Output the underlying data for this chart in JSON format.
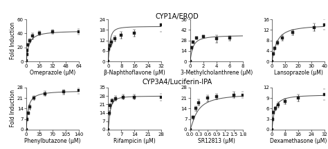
{
  "title_top": "CYP1A/EROD",
  "title_bottom": "CYP3A4/Luciferin-IPA",
  "panels": [
    {
      "xlabel": "Omeprazole (μM)",
      "ylabel": "Fold Induction",
      "xmax": 64,
      "xticks": [
        0,
        16,
        32,
        48,
        64
      ],
      "ymin": 0,
      "ymax": 60,
      "yticks": [
        0,
        20,
        40,
        60
      ],
      "Emax": 44,
      "EC50": 3.0,
      "n": 1.1,
      "E0": 0,
      "x_data": [
        0,
        0.5,
        1,
        2,
        4,
        8,
        16,
        32,
        64
      ],
      "y_data": [
        1,
        10,
        16,
        24,
        30,
        36,
        40,
        42,
        42
      ],
      "y_err": [
        0.5,
        1.5,
        2,
        2,
        3,
        4,
        3,
        3,
        4
      ]
    },
    {
      "xlabel": "β-Naphthoflavone (μM)",
      "ylabel": "",
      "xmax": 32,
      "xticks": [
        0,
        8,
        16,
        24,
        32
      ],
      "ymin": 0,
      "ymax": 24,
      "yticks": [
        0,
        6,
        12,
        18,
        24
      ],
      "Emax": 20,
      "EC50": 1.0,
      "n": 1.5,
      "E0": 0,
      "x_data": [
        0,
        0.5,
        1,
        2,
        4,
        8,
        16,
        32
      ],
      "y_data": [
        0,
        7,
        9,
        11,
        13,
        15,
        16,
        21
      ],
      "y_err": [
        0.3,
        1,
        1,
        1.5,
        1.5,
        2,
        2,
        4
      ]
    },
    {
      "xlabel": "3-Methylcholanthrene (μM)",
      "ylabel": "",
      "xmax": 8,
      "xticks": [
        0,
        2,
        4,
        6,
        8
      ],
      "ymin": 0,
      "ymax": 56,
      "yticks": [
        0,
        14,
        28,
        42,
        56
      ],
      "Emax": 35,
      "EC50": 0.4,
      "n": 1.2,
      "E0": 0,
      "x_data": [
        0,
        0.25,
        0.5,
        1,
        2,
        4,
        6
      ],
      "y_data": [
        0,
        18,
        26,
        31,
        33,
        30,
        31
      ],
      "y_err": [
        0.3,
        2,
        2,
        2,
        2,
        5,
        3
      ]
    },
    {
      "xlabel": "Lansoprazole (μM)",
      "ylabel": "",
      "xmax": 40,
      "xticks": [
        0,
        10,
        20,
        30,
        40
      ],
      "ymin": 0,
      "ymax": 16,
      "yticks": [
        0,
        4,
        8,
        12,
        16
      ],
      "Emax": 14,
      "EC50": 3.5,
      "n": 1.2,
      "E0": 0,
      "x_data": [
        0,
        1,
        2,
        4,
        8,
        16,
        32,
        40
      ],
      "y_data": [
        0,
        3,
        5,
        7,
        9,
        11,
        13,
        14
      ],
      "y_err": [
        0.2,
        0.5,
        0.5,
        0.8,
        1,
        1,
        1.5,
        2
      ]
    },
    {
      "xlabel": "Phenylbutazone (μM)",
      "ylabel": "Fold Induction",
      "xmax": 140,
      "xticks": [
        0,
        35,
        70,
        105,
        140
      ],
      "ymin": 0,
      "ymax": 28,
      "yticks": [
        0,
        7,
        14,
        21,
        28
      ],
      "Emax": 26,
      "EC50": 5,
      "n": 1.1,
      "E0": 0,
      "x_data": [
        0,
        2,
        5,
        10,
        20,
        50,
        100,
        140
      ],
      "y_data": [
        0,
        7,
        11,
        15,
        21,
        24,
        25,
        26
      ],
      "y_err": [
        0.3,
        1,
        1,
        1.5,
        1.5,
        1.5,
        1.5,
        2
      ]
    },
    {
      "xlabel": "Rifampicin (μM)",
      "ylabel": "",
      "xmax": 28,
      "xticks": [
        0,
        7,
        14,
        21,
        28
      ],
      "ymin": 0,
      "ymax": 35,
      "yticks": [
        0,
        7,
        14,
        21,
        28,
        35
      ],
      "Emax": 28,
      "EC50": 1.0,
      "n": 1.5,
      "E0": 0,
      "x_data": [
        0,
        0.5,
        1,
        2,
        4,
        8,
        14,
        28
      ],
      "y_data": [
        0,
        14,
        20,
        24,
        26,
        27,
        27,
        27
      ],
      "y_err": [
        0.3,
        2,
        2,
        2,
        2,
        2,
        2,
        3
      ]
    },
    {
      "xlabel": "SR12813 (μM)",
      "ylabel": "",
      "xmax": 1.8,
      "xticks": [
        0.0,
        0.3,
        0.6,
        0.9,
        1.2,
        1.5,
        1.8
      ],
      "ymin": 0,
      "ymax": 28,
      "yticks": [
        0,
        7,
        14,
        21,
        28
      ],
      "Emax": 24,
      "EC50": 0.25,
      "n": 1.3,
      "E0": 0,
      "x_data": [
        0,
        0.1,
        0.2,
        0.3,
        0.6,
        0.9,
        1.5,
        1.8
      ],
      "y_data": [
        0,
        8,
        14,
        18,
        21,
        22,
        23,
        23
      ],
      "y_err": [
        0.3,
        1,
        1.5,
        2,
        2,
        2,
        2,
        2
      ]
    },
    {
      "xlabel": "Dexamethasone (μM)",
      "ylabel": "",
      "xmax": 32,
      "xticks": [
        0,
        8,
        16,
        24,
        32
      ],
      "ymin": 0,
      "ymax": 12,
      "yticks": [
        0,
        3,
        6,
        9,
        12
      ],
      "Emax": 10,
      "EC50": 1.5,
      "n": 1.2,
      "E0": 0,
      "x_data": [
        0,
        0.5,
        1,
        2,
        4,
        8,
        16,
        32
      ],
      "y_data": [
        0,
        3,
        5,
        6,
        7,
        8,
        9,
        10
      ],
      "y_err": [
        0.2,
        0.5,
        0.5,
        0.5,
        0.8,
        0.8,
        1,
        1.5
      ]
    }
  ],
  "line_color": "#555555",
  "marker_color": "#1a1a1a",
  "bg_color": "#ffffff",
  "title_fontsize": 7,
  "label_fontsize": 5.5,
  "tick_fontsize": 5
}
